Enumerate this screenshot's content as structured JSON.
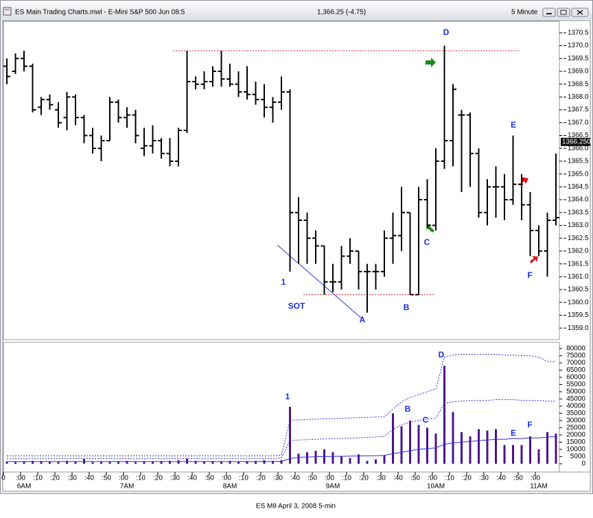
{
  "window": {
    "title": "ES Main Trading Charts.mwl - E-Mini S&P 500 Jun 08:5",
    "quote": "1,366.25 (-4.75)",
    "interval": "5 Minute"
  },
  "caption": "ES M8 April 3, 2008 5-min",
  "chart_data": [
    {
      "type": "ohlc",
      "color": "#000000",
      "x": [
        352,
        357,
        362,
        367,
        372,
        377,
        382,
        387,
        392,
        397,
        402,
        407,
        412,
        417,
        422,
        427,
        432,
        437,
        442,
        447,
        452,
        457,
        462,
        467,
        472,
        477,
        482,
        487,
        492,
        497,
        502,
        507,
        512,
        517,
        522,
        527,
        532,
        537,
        542,
        547,
        552,
        557,
        562,
        567,
        572,
        577,
        582,
        587,
        592,
        597,
        602,
        607,
        612,
        617,
        622,
        627,
        632,
        637,
        642,
        647,
        652,
        657,
        662,
        667,
        672
      ],
      "open": [
        1369.2,
        1369.0,
        1369.5,
        1369.2,
        1367.6,
        1367.9,
        1367.5,
        1367.2,
        1368.0,
        1367.2,
        1366.5,
        1366.0,
        1366.3,
        1367.8,
        1367.2,
        1367.3,
        1366.0,
        1366.1,
        1366.3,
        1365.8,
        1365.5,
        1366.7,
        1368.6,
        1368.5,
        1368.6,
        1369.0,
        1368.7,
        1368.5,
        1368.2,
        1368.1,
        1367.9,
        1367.6,
        1367.8,
        1368.2,
        1363.5,
        1363.2,
        1362.5,
        1362.2,
        1360.8,
        1360.8,
        1361.8,
        1362.0,
        1361.2,
        1361.2,
        1361.2,
        1362.5,
        1362.6,
        1363.5,
        1360.3,
        1364.0,
        1363.0,
        1365.5,
        1366.3,
        1367.3,
        1367.3,
        1365.8,
        1363.5,
        1364.5,
        1364.5,
        1364.0,
        1364.6,
        1363.8,
        1362.8,
        1362.0,
        1363.2
      ],
      "high": [
        1369.5,
        1369.7,
        1369.8,
        1369.3,
        1368.0,
        1368.1,
        1367.8,
        1368.2,
        1368.1,
        1367.3,
        1366.8,
        1366.5,
        1368.0,
        1367.9,
        1367.6,
        1367.5,
        1366.8,
        1366.9,
        1366.4,
        1366.4,
        1366.8,
        1369.8,
        1368.8,
        1369.0,
        1369.2,
        1369.8,
        1369.3,
        1369.0,
        1369.2,
        1368.6,
        1368.5,
        1368.0,
        1368.8,
        1368.3,
        1364.1,
        1363.5,
        1362.8,
        1362.2,
        1361.5,
        1362.2,
        1362.5,
        1362.0,
        1361.5,
        1361.5,
        1362.8,
        1363.5,
        1364.5,
        1363.5,
        1364.5,
        1364.8,
        1366.0,
        1370.0,
        1368.5,
        1367.5,
        1367.4,
        1366.0,
        1364.8,
        1365.3,
        1365.0,
        1366.5,
        1365.0,
        1364.3,
        1363.0,
        1363.5,
        1365.8
      ],
      "low": [
        1368.5,
        1368.9,
        1369.0,
        1367.4,
        1367.3,
        1367.5,
        1366.8,
        1366.7,
        1366.9,
        1366.2,
        1365.8,
        1365.5,
        1366.3,
        1367.0,
        1366.8,
        1366.2,
        1365.7,
        1365.8,
        1365.6,
        1365.3,
        1365.3,
        1366.6,
        1368.3,
        1368.3,
        1368.4,
        1368.4,
        1368.4,
        1368.0,
        1367.9,
        1367.7,
        1367.2,
        1367.0,
        1367.5,
        1361.2,
        1361.5,
        1361.5,
        1361.5,
        1360.3,
        1360.4,
        1360.5,
        1361.5,
        1360.5,
        1359.6,
        1360.5,
        1361.0,
        1361.5,
        1362.0,
        1360.3,
        1360.3,
        1362.9,
        1362.8,
        1365.2,
        1365.3,
        1364.3,
        1364.5,
        1363.3,
        1363.0,
        1363.3,
        1363.2,
        1363.8,
        1363.2,
        1361.8,
        1361.8,
        1361.0,
        1363.0
      ],
      "close": [
        1368.8,
        1369.5,
        1369.2,
        1367.5,
        1367.9,
        1367.7,
        1367.0,
        1368.0,
        1367.2,
        1366.5,
        1366.0,
        1366.3,
        1367.8,
        1367.2,
        1367.3,
        1366.5,
        1366.1,
        1366.3,
        1365.8,
        1365.5,
        1366.7,
        1368.6,
        1368.5,
        1368.6,
        1369.0,
        1368.7,
        1368.5,
        1368.2,
        1368.1,
        1367.9,
        1367.6,
        1367.8,
        1368.2,
        1363.5,
        1363.2,
        1362.5,
        1362.2,
        1360.8,
        1360.8,
        1361.8,
        1362.0,
        1361.2,
        1361.2,
        1361.2,
        1362.5,
        1362.6,
        1363.5,
        1360.3,
        1364.0,
        1363.0,
        1365.5,
        1366.3,
        1368.3,
        1367.3,
        1365.8,
        1363.5,
        1364.5,
        1364.5,
        1364.0,
        1364.6,
        1363.8,
        1362.8,
        1362.0,
        1363.2,
        1363.3
      ],
      "ylim": [
        1358.55,
        1370.95
      ],
      "yticks": [
        {
          "value": 1359.0,
          "label": "1359.0"
        },
        {
          "value": 1359.5,
          "label": "1359.5"
        },
        {
          "value": 1360.0,
          "label": "1360.0"
        },
        {
          "value": 1360.5,
          "label": "1360.5"
        },
        {
          "value": 1361.0,
          "label": "1361.0"
        },
        {
          "value": 1361.5,
          "label": "1361.5"
        },
        {
          "value": 1362.0,
          "label": "1362.0"
        },
        {
          "value": 1362.5,
          "label": "1362.5"
        },
        {
          "value": 1363.0,
          "label": "1363.0"
        },
        {
          "value": 1363.5,
          "label": "1363.5"
        },
        {
          "value": 1364.0,
          "label": "1364.0"
        },
        {
          "value": 1364.5,
          "label": "1364.5"
        },
        {
          "value": 1365.0,
          "label": "1365.0"
        },
        {
          "value": 1365.5,
          "label": "1365.5"
        },
        {
          "value": 1366.0,
          "label": "1366.0"
        },
        {
          "value": 1366.5,
          "label": "1366.5"
        },
        {
          "value": 1367.0,
          "label": "1367.0"
        },
        {
          "value": 1367.5,
          "label": "1367.5"
        },
        {
          "value": 1368.0,
          "label": "1368.0"
        },
        {
          "value": 1368.5,
          "label": "1368.5"
        },
        {
          "value": 1369.0,
          "label": "1369.0"
        },
        {
          "value": 1369.5,
          "label": "1369.5"
        },
        {
          "value": 1370.0,
          "label": "1370.0"
        },
        {
          "value": 1370.5,
          "label": "1370.5"
        }
      ],
      "last": {
        "value": 1366.25,
        "label": "1366.250"
      },
      "hlines": [
        1369.8,
        1360.3
      ],
      "annotations": [
        "D",
        "E",
        "F",
        "1",
        "SOT",
        "A",
        "B",
        "C"
      ]
    },
    {
      "type": "bar",
      "color": "#4a128c",
      "values": [
        1500,
        1200,
        1500,
        2000,
        1800,
        1500,
        1200,
        2000,
        1500,
        3500,
        1200,
        1500,
        1500,
        1500,
        2000,
        1200,
        1500,
        1500,
        1800,
        2000,
        2500,
        3500,
        2000,
        1500,
        1800,
        1500,
        2000,
        1500,
        1800,
        2000,
        2500,
        2000,
        2500,
        39500,
        7000,
        8000,
        9000,
        10000,
        8000,
        5000,
        4000,
        6500,
        2000,
        3000,
        6000,
        35000,
        26000,
        30000,
        27000,
        25000,
        21000,
        68000,
        36000,
        22000,
        19000,
        24000,
        23000,
        24000,
        13000,
        13000,
        13000,
        19000,
        10000,
        22000,
        21000
      ],
      "overlays": [
        {
          "color": "#2b2bdc",
          "style": "dotted",
          "values": [
            3500,
            3500,
            3500,
            3500,
            3500,
            3500,
            3500,
            3500,
            3500,
            3500,
            3500,
            3500,
            3500,
            3500,
            3500,
            3500,
            3500,
            3500,
            3500,
            3500,
            3500,
            3500,
            3500,
            3500,
            3500,
            3500,
            3500,
            3500,
            3500,
            3500,
            3500,
            3500,
            4000,
            16000,
            16500,
            16800,
            17000,
            17200,
            17400,
            17600,
            17800,
            18000,
            18300,
            18600,
            19000,
            24000,
            27000,
            29000,
            30000,
            31000,
            31500,
            42000,
            43000,
            43500,
            44000,
            44000,
            44000,
            44500,
            44500,
            44500,
            44000,
            44000,
            44000,
            43500,
            43500
          ]
        },
        {
          "color": "#2b2bdc",
          "style": "dotted",
          "values": [
            5500,
            5500,
            5500,
            5500,
            5500,
            5500,
            5500,
            5500,
            5500,
            5500,
            5500,
            5500,
            5500,
            5500,
            5500,
            5500,
            5500,
            5500,
            5500,
            5500,
            5500,
            5500,
            5500,
            5500,
            5500,
            5500,
            5500,
            5500,
            5500,
            5500,
            5500,
            5500,
            6000,
            30000,
            30500,
            30800,
            31000,
            31200,
            31400,
            31600,
            31800,
            32000,
            32200,
            32400,
            32600,
            38000,
            43000,
            46000,
            48000,
            50000,
            52000,
            74000,
            75500,
            76000,
            76000,
            76000,
            76000,
            76000,
            75500,
            75500,
            75000,
            75000,
            74000,
            71000,
            71000
          ]
        },
        {
          "color": "#2b2bdc",
          "style": "solid",
          "values": [
            1500,
            1500,
            1500,
            1500,
            1500,
            1500,
            1500,
            1500,
            1500,
            1500,
            1500,
            1500,
            1500,
            1500,
            1500,
            1500,
            1500,
            1500,
            1500,
            1500,
            1500,
            1500,
            1500,
            1500,
            1500,
            1500,
            1500,
            1500,
            1500,
            1500,
            1500,
            1500,
            1800,
            3500,
            4500,
            4700,
            4900,
            5000,
            5100,
            5200,
            5300,
            5400,
            5500,
            5600,
            5800,
            7000,
            8000,
            9000,
            10000,
            10500,
            11000,
            13500,
            14500,
            15000,
            15500,
            16000,
            16500,
            17000,
            17000,
            17500,
            17500,
            18000,
            18000,
            18500,
            19000
          ]
        }
      ],
      "ylim": [
        -5750,
        84300
      ],
      "yticks": [
        0,
        5000,
        10000,
        15000,
        20000,
        25000,
        30000,
        35000,
        40000,
        45000,
        50000,
        55000,
        60000,
        65000,
        70000,
        75000,
        80000
      ],
      "xlim": [
        350,
        674
      ],
      "xticks": [
        {
          "value": 350,
          "label": "0"
        },
        {
          "value": 360,
          "label": ":00"
        },
        {
          "value": 370,
          "label": ":10"
        },
        {
          "value": 380,
          "label": ":20"
        },
        {
          "value": 390,
          "label": ":30"
        },
        {
          "value": 400,
          "label": ":40"
        },
        {
          "value": 410,
          "label": ":50"
        },
        {
          "value": 420,
          "label": ":00"
        },
        {
          "value": 430,
          "label": ":10"
        },
        {
          "value": 440,
          "label": ":20"
        },
        {
          "value": 450,
          "label": ":30"
        },
        {
          "value": 460,
          "label": ":40"
        },
        {
          "value": 470,
          "label": ":50"
        },
        {
          "value": 480,
          "label": ":00"
        },
        {
          "value": 490,
          "label": ":10"
        },
        {
          "value": 500,
          "label": ":20"
        },
        {
          "value": 510,
          "label": ":30"
        },
        {
          "value": 520,
          "label": ":40"
        },
        {
          "value": 530,
          "label": ":50"
        },
        {
          "value": 540,
          "label": ":00"
        },
        {
          "value": 550,
          "label": ":10"
        },
        {
          "value": 560,
          "label": ":20"
        },
        {
          "value": 570,
          "label": ":30"
        },
        {
          "value": 580,
          "label": ":40"
        },
        {
          "value": 590,
          "label": ":50"
        },
        {
          "value": 600,
          "label": ":00"
        },
        {
          "value": 610,
          "label": ":10"
        },
        {
          "value": 620,
          "label": ":20"
        },
        {
          "value": 630,
          "label": ":30"
        },
        {
          "value": 640,
          "label": ":40"
        },
        {
          "value": 650,
          "label": ":50"
        },
        {
          "value": 660,
          "label": ":00"
        }
      ],
      "hour_labels": [
        {
          "value": 360,
          "label": "6AM"
        },
        {
          "value": 420,
          "label": "7AM"
        },
        {
          "value": 480,
          "label": "8AM"
        },
        {
          "value": 540,
          "label": "9AM"
        },
        {
          "value": 600,
          "label": "10AM"
        },
        {
          "value": 660,
          "label": "11AM"
        }
      ],
      "annotations": [
        "1",
        "B",
        "C",
        "D",
        "E",
        "F"
      ]
    }
  ]
}
